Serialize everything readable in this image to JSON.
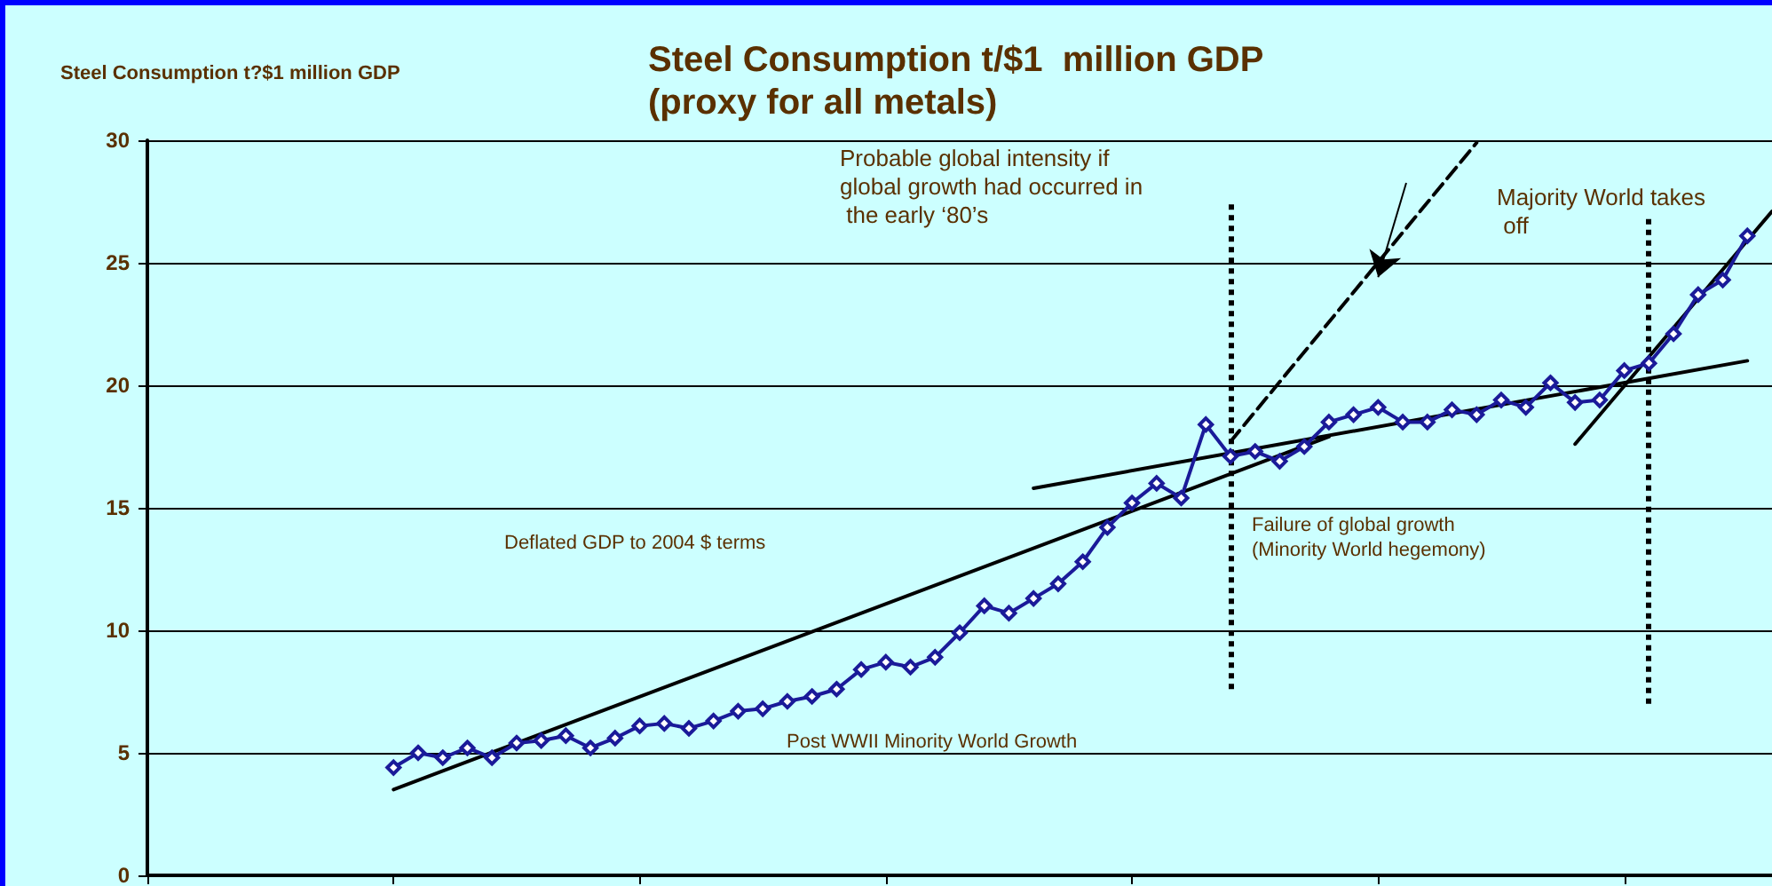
{
  "chart_data": {
    "type": "line",
    "title": "Steel Consumption t/$1  million GDP (proxy for all metals)",
    "ylabel": "Steel Consumption t?$1 million GDP",
    "categories": [
      null,
      null,
      null,
      null,
      null,
      null,
      null,
      null,
      null,
      null,
      null,
      null,
      null,
      null,
      null,
      null,
      null,
      null,
      null,
      null,
      null,
      null,
      null,
      null,
      null,
      null,
      null,
      null,
      null,
      null,
      null,
      null,
      null,
      null,
      null,
      null,
      null,
      null,
      null,
      null,
      null,
      null,
      null,
      null,
      null,
      null,
      null,
      null,
      null,
      null,
      null,
      null,
      null,
      null,
      null,
      null,
      null,
      null,
      null,
      null,
      null,
      null,
      null,
      null,
      null,
      null,
      null
    ],
    "ylim": [
      0,
      30
    ],
    "yticks": [
      0,
      5,
      10,
      15,
      20,
      25,
      30
    ],
    "grid": "y",
    "tick_labels": "y",
    "series": [
      {
        "color": "#1a1a99",
        "marker": "diamond",
        "line_style": "solid",
        "values": [
          null,
          null,
          null,
          null,
          null,
          null,
          null,
          null,
          null,
          null,
          4.4,
          5.0,
          4.8,
          5.2,
          4.8,
          5.4,
          5.5,
          5.7,
          5.2,
          5.6,
          6.1,
          6.2,
          6.0,
          6.3,
          6.7,
          6.8,
          7.1,
          7.3,
          7.6,
          8.4,
          8.7,
          8.5,
          8.9,
          9.9,
          11.0,
          10.7,
          11.3,
          11.9,
          12.8,
          14.2,
          15.2,
          16.0,
          15.4,
          18.4,
          17.1,
          17.3,
          16.9,
          17.5,
          18.5,
          18.8,
          19.1,
          18.5,
          18.5,
          19.0,
          18.8,
          19.4,
          19.1,
          20.1,
          19.3,
          19.4,
          20.6,
          20.9,
          22.1,
          23.7,
          24.3,
          26.1,
          null
        ]
      },
      {
        "type": "line",
        "color": "#000000",
        "marker": "none",
        "line_style": "solid",
        "values": [
          null,
          null,
          null,
          null,
          null,
          null,
          null,
          null,
          null,
          null,
          3.5,
          null,
          null,
          null,
          null,
          null,
          null,
          null,
          null,
          null,
          null,
          null,
          null,
          null,
          null,
          null,
          null,
          null,
          null,
          null,
          null,
          null,
          null,
          null,
          null,
          null,
          null,
          null,
          null,
          null,
          null,
          null,
          null,
          null,
          null,
          null,
          null,
          null,
          17.9,
          null,
          null,
          null,
          null,
          null,
          null,
          null,
          null,
          null,
          null,
          null,
          null,
          null,
          null,
          null,
          null,
          null,
          null
        ]
      },
      {
        "type": "line",
        "color": "#000000",
        "marker": "none",
        "line_style": "solid",
        "values": [
          null,
          null,
          null,
          null,
          null,
          null,
          null,
          null,
          null,
          null,
          null,
          null,
          null,
          null,
          null,
          null,
          null,
          null,
          null,
          null,
          null,
          null,
          null,
          null,
          null,
          null,
          null,
          null,
          null,
          null,
          null,
          null,
          null,
          null,
          null,
          null,
          15.8,
          null,
          null,
          null,
          null,
          null,
          null,
          null,
          null,
          null,
          null,
          null,
          null,
          null,
          null,
          null,
          null,
          null,
          null,
          null,
          null,
          null,
          null,
          null,
          null,
          null,
          null,
          null,
          null,
          21.0,
          null
        ]
      },
      {
        "type": "line",
        "color": "#000000",
        "marker": "none",
        "line_style": "solid",
        "values": [
          null,
          null,
          null,
          null,
          null,
          null,
          null,
          null,
          null,
          null,
          null,
          null,
          null,
          null,
          null,
          null,
          null,
          null,
          null,
          null,
          null,
          null,
          null,
          null,
          null,
          null,
          null,
          null,
          null,
          null,
          null,
          null,
          null,
          null,
          null,
          null,
          null,
          null,
          null,
          null,
          null,
          null,
          null,
          null,
          null,
          null,
          null,
          null,
          null,
          null,
          null,
          null,
          null,
          null,
          null,
          null,
          null,
          null,
          17.6,
          null,
          null,
          null,
          null,
          null,
          null,
          null,
          27.1
        ]
      },
      {
        "type": "line",
        "color": "#000000",
        "marker": "none",
        "line_style": "dashed",
        "values": [
          null,
          null,
          null,
          null,
          null,
          null,
          null,
          null,
          null,
          null,
          null,
          null,
          null,
          null,
          null,
          null,
          null,
          null,
          null,
          null,
          null,
          null,
          null,
          null,
          null,
          null,
          null,
          null,
          null,
          null,
          null,
          null,
          null,
          null,
          null,
          null,
          null,
          null,
          null,
          null,
          null,
          null,
          null,
          null,
          17.7,
          null,
          null,
          null,
          null,
          null,
          null,
          null,
          null,
          null,
          29.9,
          null,
          null,
          null,
          null,
          null,
          null,
          null,
          null,
          null,
          null,
          null,
          null
        ]
      }
    ],
    "annotations": [
      "Probable global intensity if global growth had occurred in the early ‘80’s",
      "Majority World takes off",
      "Deflated GDP to 2004 $ terms",
      "Failure of global growth (Minority World hegemony)",
      "Post WWII Minority World Growth"
    ]
  }
}
